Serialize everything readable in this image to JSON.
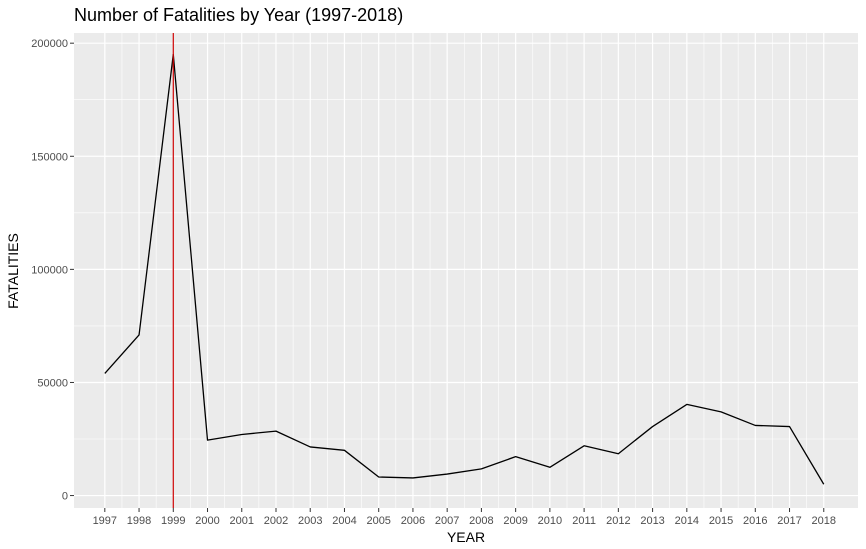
{
  "chart_data": {
    "type": "line",
    "title": "Number of Fatalities by Year (1997-2018)",
    "xlabel": "YEAR",
    "ylabel": "FATALITIES",
    "x": [
      1997,
      1998,
      1999,
      2000,
      2001,
      2002,
      2003,
      2004,
      2005,
      2006,
      2007,
      2008,
      2009,
      2010,
      2011,
      2012,
      2013,
      2014,
      2015,
      2016,
      2017,
      2018
    ],
    "x_tick_labels": [
      "1997",
      "1998",
      "1999",
      "2000",
      "2001",
      "2002",
      "2003",
      "2004",
      "2005",
      "2006",
      "2007",
      "2008",
      "2009",
      "2010",
      "2011",
      "2012",
      "2013",
      "2014",
      "2015",
      "2016",
      "2017",
      "2018"
    ],
    "series": [
      {
        "values": [
          54000,
          71000,
          195000,
          24500,
          27000,
          28500,
          21500,
          20000,
          8200,
          7800,
          9500,
          11800,
          17200,
          12500,
          22000,
          18500,
          30500,
          40300,
          37000,
          31000,
          30500,
          5000
        ],
        "color": "#000000"
      }
    ],
    "y_ticks": [
      0,
      50000,
      100000,
      150000,
      200000
    ],
    "y_tick_labels": [
      "0",
      "50000",
      "100000",
      "150000",
      "200000"
    ],
    "xlim": [
      1996.1,
      2019.0
    ],
    "ylim": [
      -5500,
      204500
    ],
    "reference_line": {
      "x": 1999,
      "color": "#cc0000"
    },
    "panel_background": "#ebebeb",
    "grid_color": "#ffffff",
    "grid": true,
    "legend": "none"
  }
}
